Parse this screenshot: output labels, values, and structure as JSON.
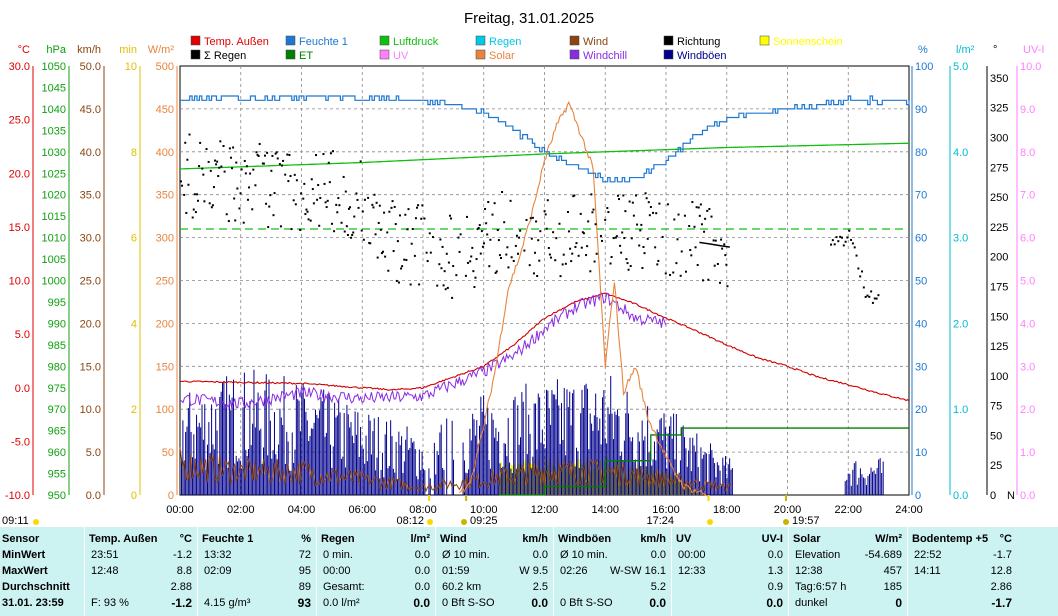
{
  "title": "Freitag, 31.01.2025",
  "legend": [
    {
      "label": "Temp. Außen",
      "color": "#e00000"
    },
    {
      "label": "Feuchte 1",
      "color": "#1e78d2"
    },
    {
      "label": "Luftdruck",
      "color": "#10c010"
    },
    {
      "label": "Regen",
      "color": "#00c8e6"
    },
    {
      "label": "Wind",
      "color": "#8b4513"
    },
    {
      "label": "Richtung",
      "color": "#000000"
    },
    {
      "label": "Sonnenschein",
      "color": "#ffff00"
    },
    {
      "label": "Σ Regen",
      "color": "#000000"
    },
    {
      "label": "ET",
      "color": "#008000"
    },
    {
      "label": "UV",
      "color": "#ff7fff"
    },
    {
      "label": "Solar",
      "color": "#e8843c"
    },
    {
      "label": "Windchill",
      "color": "#8a2be2"
    },
    {
      "label": "Windböen",
      "color": "#00008b"
    }
  ],
  "axes": {
    "temp": {
      "unit": "°C",
      "color": "#e00000",
      "ticks": [
        "30.0",
        "25.0",
        "20.0",
        "15.0",
        "10.0",
        "5.0",
        "0.0",
        "-5.0",
        "-10.0"
      ]
    },
    "press": {
      "unit": "hPa",
      "color": "#10a010",
      "ticks": [
        "1050",
        "1045",
        "1040",
        "1035",
        "1030",
        "1025",
        "1020",
        "1015",
        "1010",
        "1005",
        "1000",
        "995",
        "990",
        "985",
        "980",
        "975",
        "970",
        "965",
        "960",
        "955",
        "950"
      ]
    },
    "wind": {
      "unit": "km/h",
      "color": "#8b4513",
      "ticks": [
        "50.0",
        "45.0",
        "40.0",
        "35.0",
        "30.0",
        "25.0",
        "20.0",
        "15.0",
        "10.0",
        "5.0",
        "0.0"
      ]
    },
    "sun": {
      "unit": "min",
      "color": "#e0c000",
      "ticks": [
        "10",
        "8",
        "6",
        "4",
        "2",
        "0"
      ]
    },
    "solar": {
      "unit": "W/m²",
      "color": "#e8843c",
      "ticks": [
        "500",
        "450",
        "400",
        "350",
        "300",
        "250",
        "200",
        "150",
        "100",
        "50",
        "0"
      ]
    },
    "hum": {
      "unit": "%",
      "color": "#1e78d2",
      "ticks": [
        "100",
        "90",
        "80",
        "70",
        "60",
        "50",
        "40",
        "30",
        "20",
        "10",
        "0"
      ]
    },
    "rain": {
      "unit": "l/m²",
      "color": "#00bcd4",
      "ticks": [
        "5.0",
        "4.0",
        "3.0",
        "2.0",
        "1.0",
        "0.0"
      ]
    },
    "dir": {
      "unit": "°",
      "color": "#000000",
      "ticks": [
        "350",
        "325",
        "300",
        "275",
        "250",
        "225",
        "200",
        "175",
        "150",
        "125",
        "100",
        "75",
        "50",
        "25",
        "0"
      ],
      "bottom_label": "N"
    },
    "uv": {
      "unit": "UV-I",
      "color": "#ff7fff",
      "ticks": [
        "10.0",
        "9.0",
        "8.0",
        "7.0",
        "6.0",
        "5.0",
        "4.0",
        "3.0",
        "2.0",
        "1.0",
        "0.0"
      ]
    }
  },
  "x_ticks": [
    "00:00",
    "02:00",
    "04:00",
    "06:00",
    "08:00",
    "10:00",
    "12:00",
    "14:00",
    "16:00",
    "18:00",
    "20:00",
    "22:00",
    "24:00"
  ],
  "events": [
    {
      "label": "09:11",
      "marker": "sun"
    },
    {
      "label": "08:12",
      "marker": "sun"
    },
    {
      "label": "09:25",
      "marker": "moon"
    },
    {
      "label": "17:24",
      "marker": "sun"
    },
    {
      "label": "19:57",
      "marker": "moon"
    }
  ],
  "chart_data": {
    "type": "line",
    "title": "Freitag, 31.01.2025",
    "x_unit": "hour",
    "series": [
      {
        "name": "Feuchte 1",
        "axis": "hum",
        "points": [
          [
            0,
            92
          ],
          [
            4,
            93
          ],
          [
            8,
            92
          ],
          [
            9,
            91
          ],
          [
            10,
            89
          ],
          [
            11,
            85
          ],
          [
            12,
            80
          ],
          [
            13,
            77
          ],
          [
            14,
            73
          ],
          [
            15,
            74
          ],
          [
            16,
            78
          ],
          [
            17,
            84
          ],
          [
            18,
            88
          ],
          [
            20,
            90
          ],
          [
            22,
            92
          ],
          [
            24,
            92
          ]
        ]
      },
      {
        "name": "Luftdruck",
        "axis": "press",
        "points": [
          [
            0,
            1026
          ],
          [
            6,
            1027.5
          ],
          [
            12,
            1029.5
          ],
          [
            18,
            1031
          ],
          [
            24,
            1032
          ]
        ]
      },
      {
        "name": "Temp. Außen",
        "axis": "temp",
        "points": [
          [
            0,
            0.6
          ],
          [
            2,
            0.5
          ],
          [
            4,
            0.4
          ],
          [
            6,
            0.0
          ],
          [
            7,
            -0.2
          ],
          [
            8,
            0.0
          ],
          [
            10,
            2.0
          ],
          [
            11,
            4.0
          ],
          [
            12,
            6.5
          ],
          [
            13,
            8.0
          ],
          [
            14,
            8.8
          ],
          [
            15,
            7.8
          ],
          [
            16,
            6.5
          ],
          [
            17,
            5.3
          ],
          [
            18,
            4.0
          ],
          [
            19,
            2.8
          ],
          [
            20,
            2.0
          ],
          [
            21,
            1.0
          ],
          [
            22,
            0.3
          ],
          [
            23,
            -0.5
          ],
          [
            24,
            -1.2
          ]
        ]
      },
      {
        "name": "Windchill",
        "axis": "temp",
        "points": [
          [
            0,
            -1.0
          ],
          [
            2,
            -1.5
          ],
          [
            4,
            -0.5
          ],
          [
            6,
            -1.0
          ],
          [
            8,
            -0.8
          ],
          [
            10,
            1.5
          ],
          [
            11,
            3.0
          ],
          [
            12,
            5.5
          ],
          [
            13,
            7.5
          ],
          [
            14,
            8.5
          ],
          [
            15,
            6.5
          ],
          [
            16,
            6.0
          ]
        ]
      },
      {
        "name": "Solar",
        "axis": "solar",
        "points": [
          [
            9.2,
            0
          ],
          [
            9.6,
            20
          ],
          [
            10,
            80
          ],
          [
            10.4,
            150
          ],
          [
            10.8,
            240
          ],
          [
            11.2,
            280
          ],
          [
            11.6,
            330
          ],
          [
            12,
            390
          ],
          [
            12.4,
            430
          ],
          [
            12.8,
            457
          ],
          [
            13.2,
            420
          ],
          [
            13.6,
            380
          ],
          [
            14,
            150
          ],
          [
            14.3,
            250
          ],
          [
            14.6,
            120
          ],
          [
            15,
            150
          ],
          [
            15.4,
            90
          ],
          [
            15.8,
            60
          ],
          [
            16.2,
            30
          ],
          [
            16.6,
            10
          ],
          [
            17.2,
            2
          ],
          [
            17.4,
            0
          ]
        ]
      },
      {
        "name": "Wind",
        "axis": "wind",
        "points": [
          [
            0,
            4
          ],
          [
            2,
            3
          ],
          [
            4,
            3
          ],
          [
            6,
            2
          ],
          [
            8,
            1
          ],
          [
            10,
            2
          ],
          [
            12,
            3
          ],
          [
            14,
            3
          ],
          [
            16,
            2
          ],
          [
            18,
            1
          ]
        ]
      },
      {
        "name": "Windböen",
        "axis": "wind",
        "points": [
          [
            0,
            8
          ],
          [
            2,
            10
          ],
          [
            4,
            9
          ],
          [
            6,
            7
          ],
          [
            8,
            5
          ],
          [
            10,
            8
          ],
          [
            12,
            9
          ],
          [
            14,
            10
          ],
          [
            16,
            7
          ],
          [
            18,
            3
          ],
          [
            22,
            3
          ]
        ]
      },
      {
        "name": "ET",
        "axis": "rain",
        "points": [
          [
            10.5,
            0
          ],
          [
            12,
            0.1
          ],
          [
            14,
            0.4
          ],
          [
            15.5,
            0.7
          ],
          [
            16.5,
            0.78
          ],
          [
            24,
            0.78
          ]
        ]
      },
      {
        "name": "Sonnenschein",
        "axis": "sun",
        "points": [
          [
            10.5,
            0.8
          ],
          [
            12,
            0.9
          ],
          [
            14,
            0.9
          ],
          [
            16,
            0.6
          ],
          [
            17.3,
            0
          ]
        ]
      },
      {
        "name": "Richtung",
        "axis": "dir",
        "points": [
          [
            0,
            270
          ],
          [
            1,
            265
          ],
          [
            2,
            262
          ],
          [
            3,
            260
          ],
          [
            4,
            258
          ],
          [
            5,
            255
          ],
          [
            6,
            245
          ],
          [
            7,
            215
          ],
          [
            8,
            210
          ],
          [
            9,
            200
          ],
          [
            10,
            215
          ],
          [
            11,
            225
          ],
          [
            12,
            215
          ],
          [
            13,
            220
          ],
          [
            14,
            225
          ],
          [
            15,
            222
          ],
          [
            16,
            218
          ],
          [
            17,
            215
          ],
          [
            18,
            210
          ],
          [
            21.5,
            210
          ],
          [
            22,
            220
          ],
          [
            22.5,
            175
          ],
          [
            23,
            165
          ]
        ]
      }
    ],
    "reference": {
      "name": "Luftdruck-Mittel",
      "axis": "press",
      "value": 1012
    }
  },
  "stats": {
    "rows": [
      "Sensor",
      "MinWert",
      "MaxWert",
      "Durchschnitt",
      "31.01. 23:59"
    ],
    "columns": [
      {
        "title": "Temp. Außen",
        "unit": "°C",
        "cells": [
          [
            "23:51",
            "-1.2"
          ],
          [
            "12:48",
            "8.8"
          ],
          [
            "",
            "2.88"
          ],
          [
            "F: 93 %",
            "-1.2"
          ]
        ]
      },
      {
        "title": "Feuchte 1",
        "unit": "%",
        "cells": [
          [
            "13:32",
            "72"
          ],
          [
            "02:09",
            "95"
          ],
          [
            "",
            "89"
          ],
          [
            "4.15 g/m³",
            "93"
          ]
        ]
      },
      {
        "title": "Regen",
        "unit": "l/m²",
        "cells": [
          [
            "0 min.",
            "0.0"
          ],
          [
            "00:00",
            "0.0"
          ],
          [
            "Gesamt:",
            "0.0"
          ],
          [
            "0.0 l/m²",
            "0.0"
          ]
        ]
      },
      {
        "title": "Wind",
        "unit": "km/h",
        "cells": [
          [
            "Ø 10 min.",
            "0.0"
          ],
          [
            "01:59",
            "W 9.5"
          ],
          [
            "60.2 km",
            "2.5"
          ],
          [
            "0 Bft S-SO",
            "0.0"
          ]
        ]
      },
      {
        "title": "Windböen",
        "unit": "km/h",
        "cells": [
          [
            "Ø 10 min.",
            "0.0"
          ],
          [
            "02:26",
            "W-SW 16.1"
          ],
          [
            "",
            "5.2"
          ],
          [
            "0 Bft S-SO",
            "0.0"
          ]
        ]
      },
      {
        "title": "UV",
        "unit": "UV-I",
        "cells": [
          [
            "00:00",
            "0.0"
          ],
          [
            "12:33",
            "1.3"
          ],
          [
            "",
            "0.9"
          ],
          [
            "",
            "0.0"
          ]
        ]
      },
      {
        "title": "Solar",
        "unit": "W/m²",
        "cells": [
          [
            "Elevation",
            "-54.689"
          ],
          [
            "12:38",
            "457"
          ],
          [
            "Tag:6:57 h",
            "185"
          ],
          [
            "dunkel",
            "0"
          ]
        ]
      },
      {
        "title": "Bodentemp +5",
        "unit": "°C",
        "cells": [
          [
            "22:52",
            "-1.7"
          ],
          [
            "14:11",
            "12.8"
          ],
          [
            "",
            "2.86"
          ],
          [
            "",
            "-1.7"
          ]
        ]
      }
    ]
  }
}
